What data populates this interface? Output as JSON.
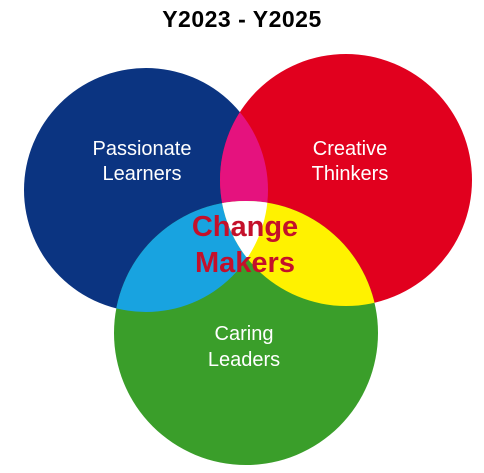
{
  "title": "Y2023 - Y2025",
  "circles": {
    "blue": {
      "line1": "Passionate",
      "line2": "Learners",
      "color": "#0b3481"
    },
    "red": {
      "line1": "Creative",
      "line2": "Thinkers",
      "color": "#e1001e"
    },
    "green": {
      "line1": "Caring",
      "line2": "Leaders",
      "color": "#3a9e2a"
    }
  },
  "overlaps": {
    "blue_red": "#e5127e",
    "blue_green": "#18a3e0",
    "red_green": "#fff200",
    "center": "#ffffff"
  },
  "center": {
    "line1": "Change",
    "line2": "Makers",
    "color": "#c4102a"
  }
}
